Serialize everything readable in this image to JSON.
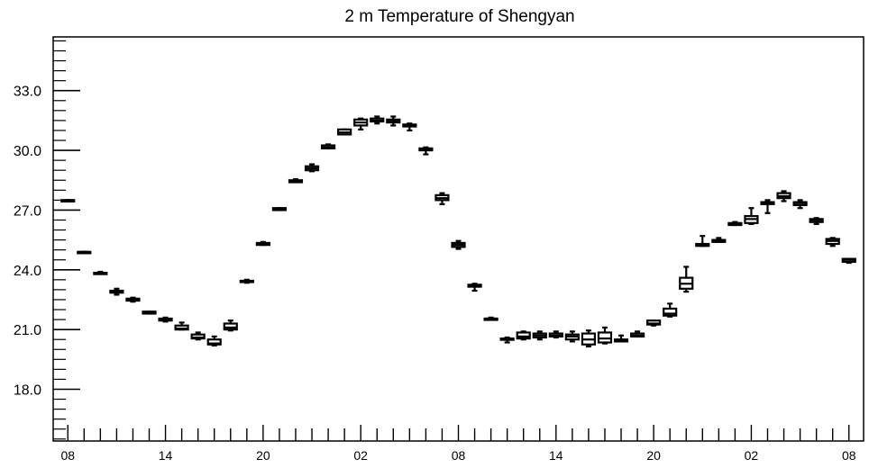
{
  "chart_data": {
    "type": "boxplot",
    "title": "2 m Temperature of Shengyan",
    "xlabel": "",
    "ylabel": "",
    "ylim": [
      15.4,
      35.7
    ],
    "xlim": [
      -0.9,
      48.9
    ],
    "y_ticks": [
      18.0,
      21.0,
      24.0,
      27.0,
      30.0,
      33.0
    ],
    "y_tick_labels": [
      "18.0",
      "21.0",
      "24.0",
      "27.0",
      "30.0",
      "33.0"
    ],
    "y_minor_step": 0.5,
    "x_tick_labels": [
      {
        "pos": 0,
        "label": "08"
      },
      {
        "pos": 6,
        "label": "14"
      },
      {
        "pos": 12,
        "label": "20"
      },
      {
        "pos": 18,
        "label": "02"
      },
      {
        "pos": 24,
        "label": "08"
      },
      {
        "pos": 30,
        "label": "14"
      },
      {
        "pos": 36,
        "label": "20"
      },
      {
        "pos": 42,
        "label": "02"
      },
      {
        "pos": 48,
        "label": "08"
      }
    ],
    "x_minor_step": 1,
    "grid": false,
    "boxes": [
      {
        "x": 0,
        "min": 27.5,
        "q1": 27.5,
        "median": 27.5,
        "q3": 27.5,
        "max": 27.5
      },
      {
        "x": 1,
        "min": 24.9,
        "q1": 24.9,
        "median": 24.9,
        "q3": 24.9,
        "max": 24.9
      },
      {
        "x": 2,
        "min": 23.8,
        "q1": 23.8,
        "median": 23.85,
        "q3": 23.85,
        "max": 23.9
      },
      {
        "x": 3,
        "min": 22.75,
        "q1": 22.85,
        "median": 22.9,
        "q3": 22.95,
        "max": 23.05
      },
      {
        "x": 4,
        "min": 22.4,
        "q1": 22.45,
        "median": 22.5,
        "q3": 22.55,
        "max": 22.6
      },
      {
        "x": 5,
        "min": 21.8,
        "q1": 21.8,
        "median": 21.85,
        "q3": 21.9,
        "max": 21.9
      },
      {
        "x": 6,
        "min": 21.4,
        "q1": 21.45,
        "median": 21.5,
        "q3": 21.55,
        "max": 21.6
      },
      {
        "x": 7,
        "min": 21.0,
        "q1": 21.0,
        "median": 21.05,
        "q3": 21.2,
        "max": 21.35
      },
      {
        "x": 8,
        "min": 20.5,
        "q1": 20.55,
        "median": 20.6,
        "q3": 20.75,
        "max": 20.85
      },
      {
        "x": 9,
        "min": 20.2,
        "q1": 20.25,
        "median": 20.3,
        "q3": 20.5,
        "max": 20.65
      },
      {
        "x": 10,
        "min": 20.95,
        "q1": 21.0,
        "median": 21.1,
        "q3": 21.3,
        "max": 21.45
      },
      {
        "x": 11,
        "min": 23.35,
        "q1": 23.4,
        "median": 23.4,
        "q3": 23.45,
        "max": 23.5
      },
      {
        "x": 12,
        "min": 25.25,
        "q1": 25.25,
        "median": 25.3,
        "q3": 25.35,
        "max": 25.4
      },
      {
        "x": 13,
        "min": 27.0,
        "q1": 27.0,
        "median": 27.05,
        "q3": 27.1,
        "max": 27.1
      },
      {
        "x": 14,
        "min": 28.4,
        "q1": 28.4,
        "median": 28.45,
        "q3": 28.5,
        "max": 28.55
      },
      {
        "x": 15,
        "min": 28.95,
        "q1": 29.0,
        "median": 29.1,
        "q3": 29.2,
        "max": 29.3
      },
      {
        "x": 16,
        "min": 30.1,
        "q1": 30.1,
        "median": 30.15,
        "q3": 30.25,
        "max": 30.3
      },
      {
        "x": 17,
        "min": 30.8,
        "q1": 30.8,
        "median": 30.9,
        "q3": 31.05,
        "max": 31.05
      },
      {
        "x": 18,
        "min": 31.05,
        "q1": 31.25,
        "median": 31.4,
        "q3": 31.55,
        "max": 31.6
      },
      {
        "x": 19,
        "min": 31.35,
        "q1": 31.45,
        "median": 31.5,
        "q3": 31.6,
        "max": 31.7
      },
      {
        "x": 20,
        "min": 31.25,
        "q1": 31.4,
        "median": 31.5,
        "q3": 31.55,
        "max": 31.7
      },
      {
        "x": 21,
        "min": 31.0,
        "q1": 31.2,
        "median": 31.25,
        "q3": 31.3,
        "max": 31.35
      },
      {
        "x": 22,
        "min": 29.8,
        "q1": 30.0,
        "median": 30.05,
        "q3": 30.1,
        "max": 30.15
      },
      {
        "x": 23,
        "min": 27.3,
        "q1": 27.5,
        "median": 27.6,
        "q3": 27.75,
        "max": 27.85
      },
      {
        "x": 24,
        "min": 25.05,
        "q1": 25.15,
        "median": 25.25,
        "q3": 25.35,
        "max": 25.45
      },
      {
        "x": 25,
        "min": 22.95,
        "q1": 23.15,
        "median": 23.2,
        "q3": 23.25,
        "max": 23.3
      },
      {
        "x": 26,
        "min": 21.5,
        "q1": 21.5,
        "median": 21.55,
        "q3": 21.55,
        "max": 21.6
      },
      {
        "x": 27,
        "min": 20.35,
        "q1": 20.5,
        "median": 20.55,
        "q3": 20.55,
        "max": 20.6
      },
      {
        "x": 28,
        "min": 20.5,
        "q1": 20.55,
        "median": 20.65,
        "q3": 20.85,
        "max": 20.9
      },
      {
        "x": 29,
        "min": 20.5,
        "q1": 20.6,
        "median": 20.7,
        "q3": 20.8,
        "max": 20.9
      },
      {
        "x": 30,
        "min": 20.6,
        "q1": 20.65,
        "median": 20.7,
        "q3": 20.8,
        "max": 20.9
      },
      {
        "x": 31,
        "min": 20.4,
        "q1": 20.5,
        "median": 20.65,
        "q3": 20.75,
        "max": 20.9
      },
      {
        "x": 32,
        "min": 20.15,
        "q1": 20.25,
        "median": 20.5,
        "q3": 20.8,
        "max": 20.95
      },
      {
        "x": 33,
        "min": 20.3,
        "q1": 20.35,
        "median": 20.55,
        "q3": 20.85,
        "max": 21.1
      },
      {
        "x": 34,
        "min": 20.4,
        "q1": 20.4,
        "median": 20.45,
        "q3": 20.5,
        "max": 20.7
      },
      {
        "x": 35,
        "min": 20.65,
        "q1": 20.65,
        "median": 20.7,
        "q3": 20.8,
        "max": 20.9
      },
      {
        "x": 36,
        "min": 21.2,
        "q1": 21.25,
        "median": 21.3,
        "q3": 21.45,
        "max": 21.45
      },
      {
        "x": 37,
        "min": 21.65,
        "q1": 21.7,
        "median": 21.8,
        "q3": 22.05,
        "max": 22.3
      },
      {
        "x": 38,
        "min": 22.9,
        "q1": 23.05,
        "median": 23.3,
        "q3": 23.6,
        "max": 24.15
      },
      {
        "x": 39,
        "min": 25.2,
        "q1": 25.2,
        "median": 25.25,
        "q3": 25.3,
        "max": 25.7
      },
      {
        "x": 40,
        "min": 25.4,
        "q1": 25.4,
        "median": 25.45,
        "q3": 25.5,
        "max": 25.6
      },
      {
        "x": 41,
        "min": 26.25,
        "q1": 26.25,
        "median": 26.3,
        "q3": 26.35,
        "max": 26.4
      },
      {
        "x": 42,
        "min": 26.3,
        "q1": 26.35,
        "median": 26.55,
        "q3": 26.7,
        "max": 27.1
      },
      {
        "x": 43,
        "min": 26.85,
        "q1": 27.3,
        "median": 27.35,
        "q3": 27.4,
        "max": 27.5
      },
      {
        "x": 44,
        "min": 27.45,
        "q1": 27.6,
        "median": 27.7,
        "q3": 27.85,
        "max": 27.95
      },
      {
        "x": 45,
        "min": 27.1,
        "q1": 27.25,
        "median": 27.35,
        "q3": 27.4,
        "max": 27.5
      },
      {
        "x": 46,
        "min": 26.3,
        "q1": 26.4,
        "median": 26.5,
        "q3": 26.55,
        "max": 26.6
      },
      {
        "x": 47,
        "min": 25.2,
        "q1": 25.3,
        "median": 25.45,
        "q3": 25.55,
        "max": 25.6
      },
      {
        "x": 48,
        "min": 24.35,
        "q1": 24.4,
        "median": 24.5,
        "q3": 24.55,
        "max": 24.55
      }
    ]
  }
}
